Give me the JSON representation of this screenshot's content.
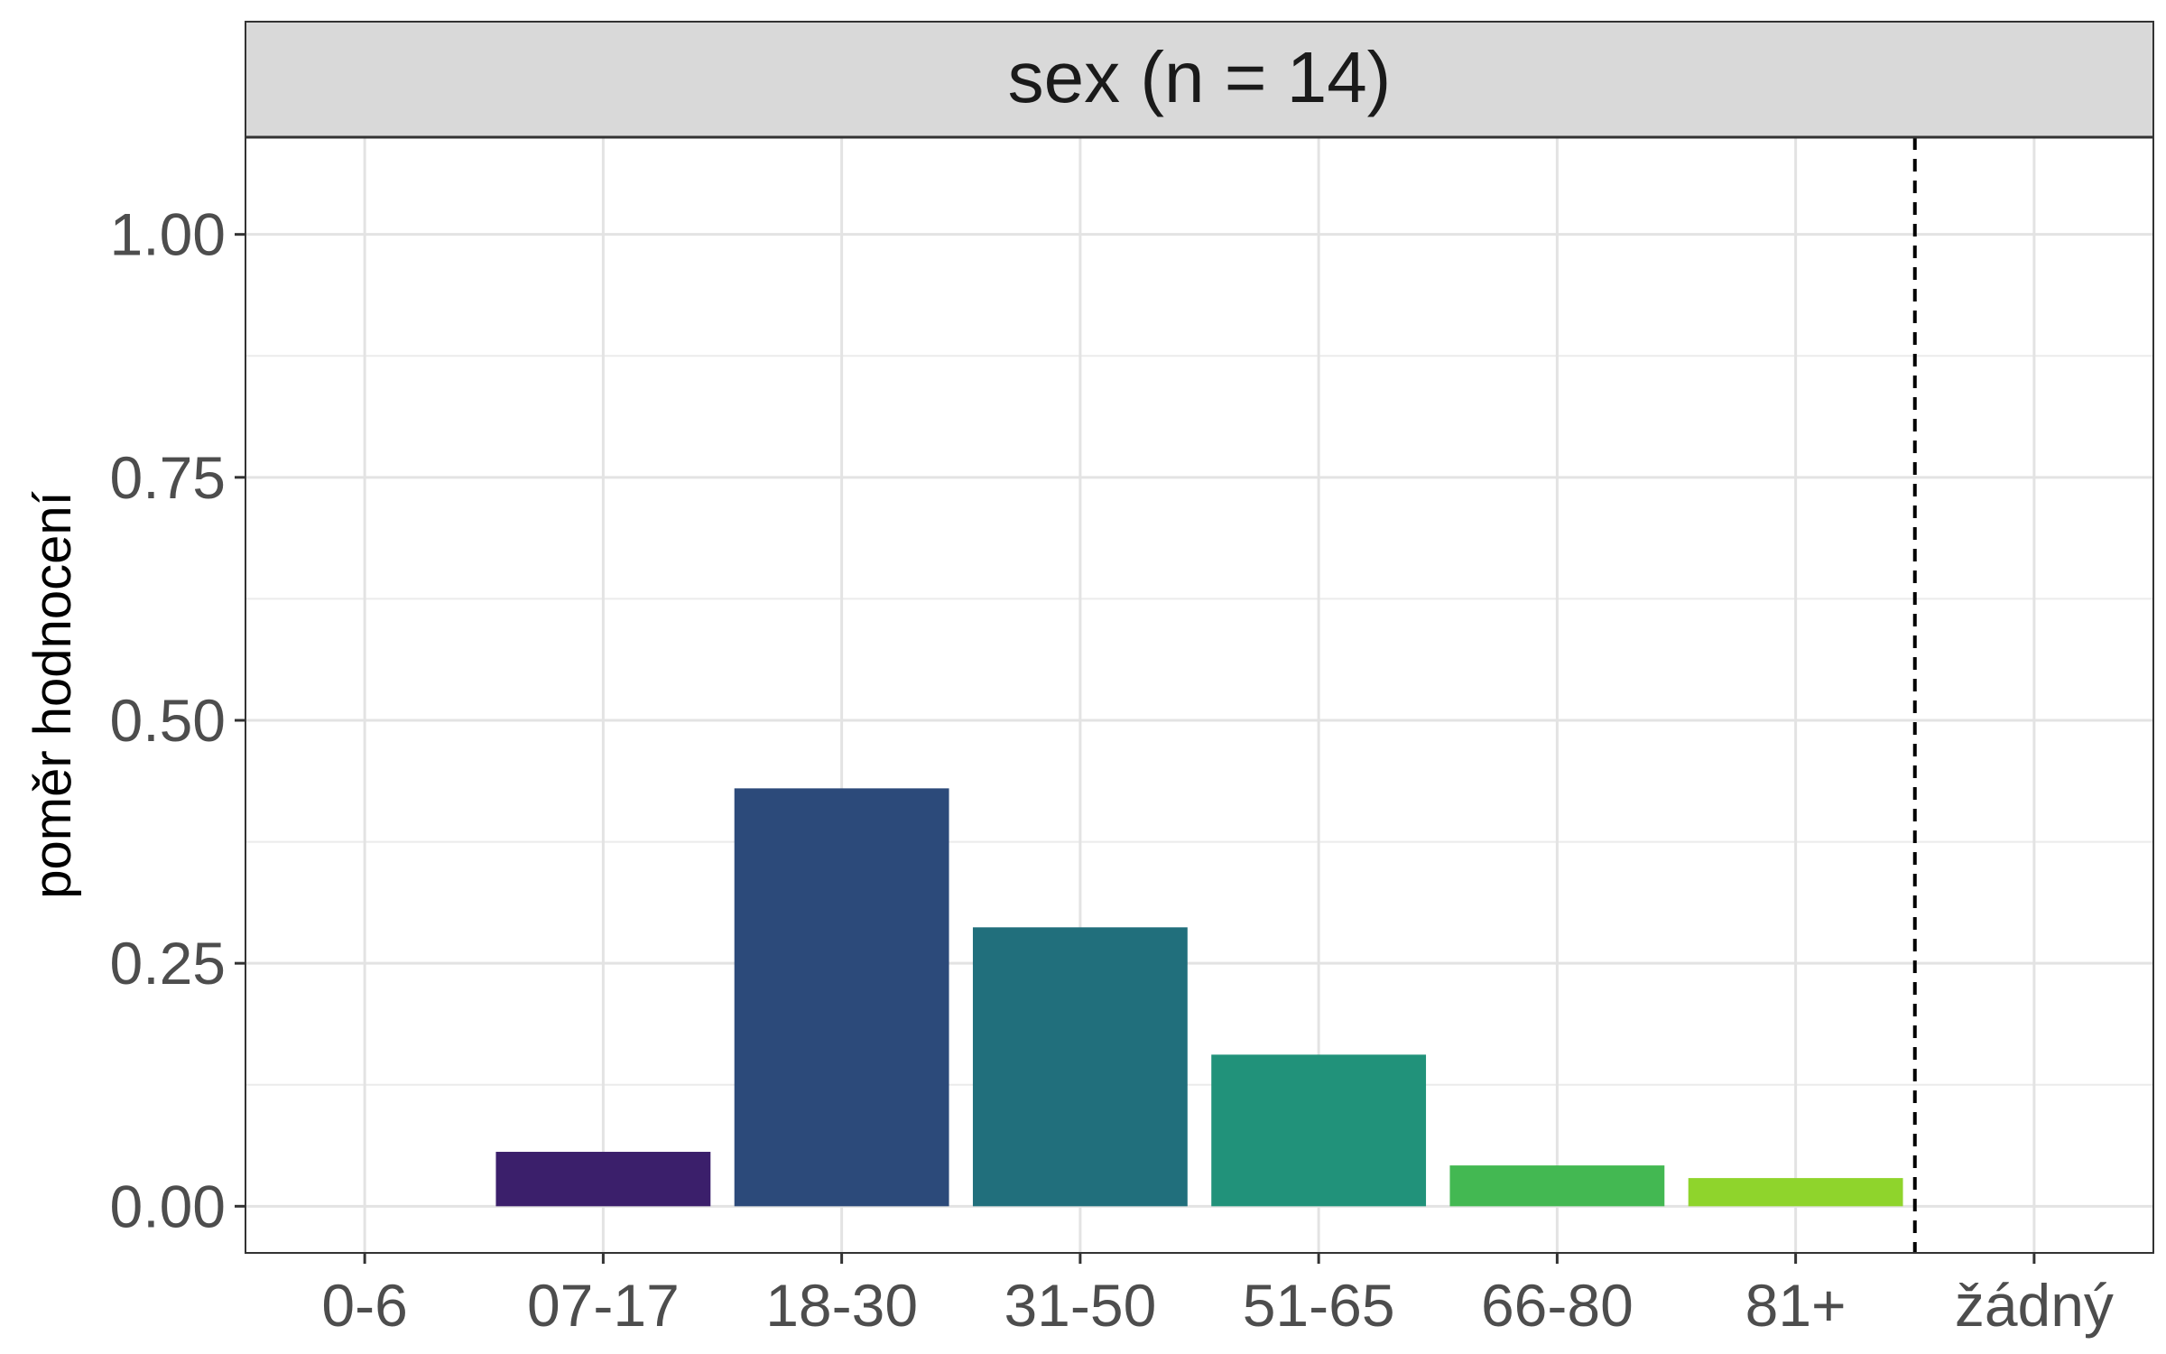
{
  "chart_data": {
    "type": "bar",
    "title": "sex (n = 14)",
    "xlabel": "",
    "ylabel": "poměr hodnocení",
    "categories": [
      "0-6",
      "07-17",
      "18-30",
      "31-50",
      "51-65",
      "66-80",
      "81+",
      "žádný"
    ],
    "values": [
      0,
      0.056,
      0.43,
      0.287,
      0.156,
      0.042,
      0.029,
      0
    ],
    "colors": [
      "#440154",
      "#3b1f6b",
      "#2c4a7a",
      "#216f7c",
      "#21927a",
      "#43b852",
      "#8fd42c",
      "#fde725"
    ],
    "ylim": [
      -0.048,
      1.1
    ],
    "yticks": [
      0,
      0.25,
      0.5,
      0.75,
      1.0
    ],
    "ytick_labels": [
      "0.00",
      "0.25",
      "0.50",
      "0.75",
      "1.00"
    ],
    "reference_line": {
      "style": "dashed",
      "between_categories": [
        "81+",
        "žádný"
      ]
    },
    "grid": true,
    "legend": "none"
  }
}
